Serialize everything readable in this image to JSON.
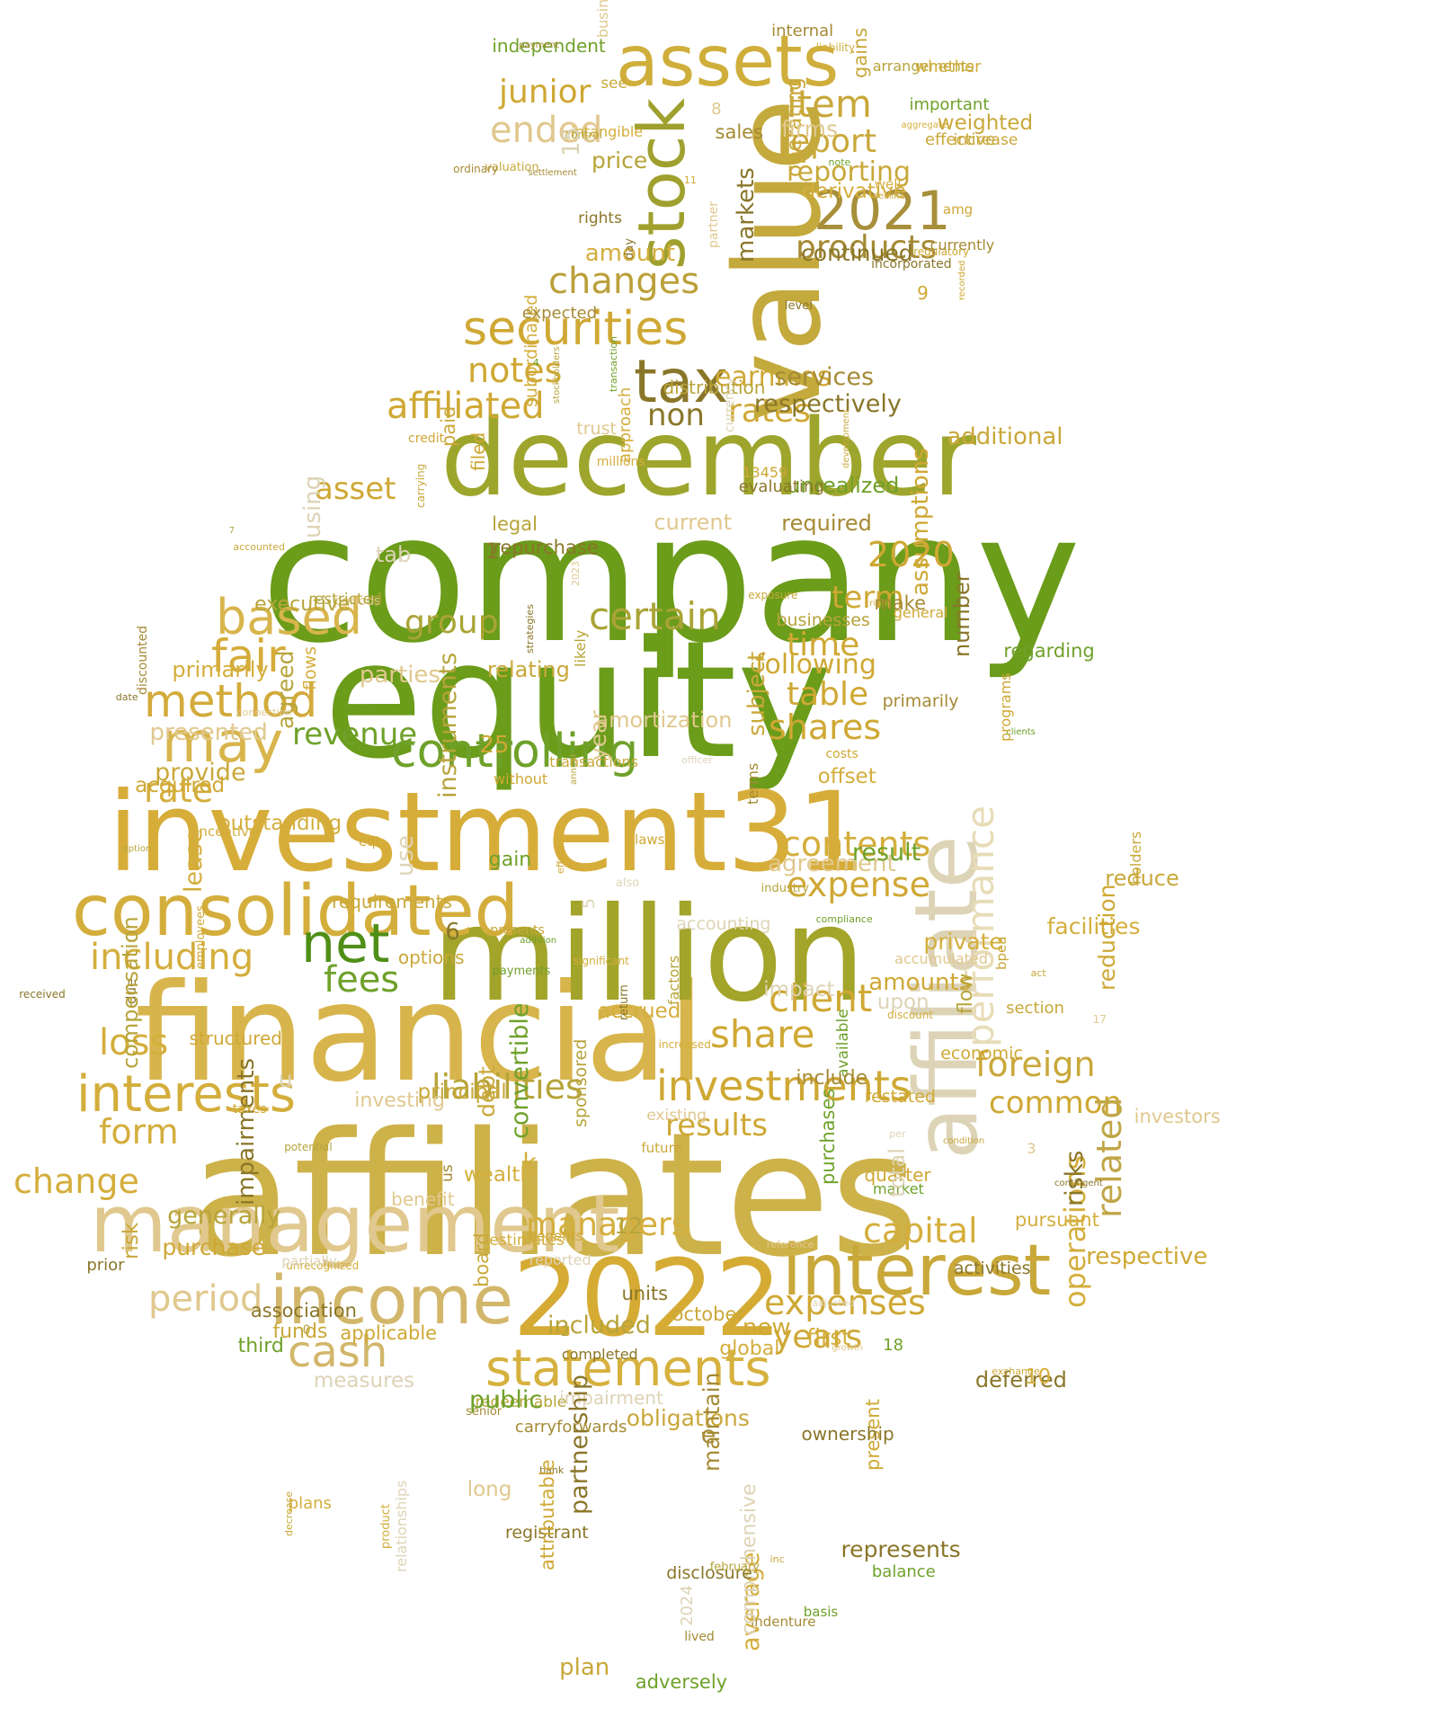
{
  "palette": {
    "dark_green": "#6b9c1a",
    "green": "#7fa622",
    "olive": "#9ea52c",
    "gold": "#d4ae3c",
    "light_gold": "#e0c275",
    "khaki": "#a88f3a",
    "beige": "#ddd3b6",
    "pale": "#e8dcb8",
    "brown": "#8a6e2c"
  },
  "words": [
    {
      "text": "company",
      "color": "#6b9c1a"
    },
    {
      "text": "equity",
      "color": "#6b9c1a"
    },
    {
      "text": "affiliates",
      "color": "#cdb24a"
    },
    {
      "text": "financial",
      "color": "#d8b54c"
    },
    {
      "text": "million",
      "color": "#a3a42a"
    },
    {
      "text": "investment31",
      "color": "#d7ad3a"
    },
    {
      "text": "december",
      "color": "#9ea52c"
    },
    {
      "text": "value",
      "color": "#c4a93c"
    },
    {
      "text": "affiliate",
      "color": "#ddd3b6"
    },
    {
      "text": "management",
      "color": "#e0c88e"
    },
    {
      "text": "2022",
      "color": "#d5ab34"
    },
    {
      "text": "consolidated",
      "color": "#d4ae3c"
    },
    {
      "text": "income",
      "color": "#d2b66a"
    },
    {
      "text": "interest",
      "color": "#c9a83a"
    },
    {
      "text": "assets",
      "color": "#cfae3b"
    },
    {
      "text": "stock",
      "color": "#a0a02f"
    },
    {
      "text": "statements",
      "color": "#d6b13e"
    },
    {
      "text": "net",
      "color": "#4f8f17"
    },
    {
      "text": "2021",
      "color": "#a88f3a"
    },
    {
      "text": "tax",
      "color": "#8a7629"
    },
    {
      "text": "securities",
      "color": "#cfa834"
    },
    {
      "text": "controlling",
      "color": "#6fa12a"
    },
    {
      "text": "interests",
      "color": "#d4ae3c"
    },
    {
      "text": "investments",
      "color": "#cfa834"
    },
    {
      "text": "may",
      "color": "#d8b54c"
    },
    {
      "text": "based",
      "color": "#d8b54c"
    },
    {
      "text": "method",
      "color": "#d3ab3c"
    },
    {
      "text": "fair",
      "color": "#d5ac3a"
    },
    {
      "text": "performance",
      "color": "#e8dcb8"
    },
    {
      "text": "products",
      "color": "#a58a34"
    },
    {
      "text": "changes",
      "color": "#bba03a"
    },
    {
      "text": "certain",
      "color": "#a9a436"
    },
    {
      "text": "shares",
      "color": "#cfa834"
    },
    {
      "text": "contents",
      "color": "#d4ae3c"
    },
    {
      "text": "expenses",
      "color": "#cfa834"
    },
    {
      "text": "cash",
      "color": "#d2b66a"
    },
    {
      "text": "liabilities",
      "color": "#b7a43a"
    },
    {
      "text": "managers",
      "color": "#d4ae3c"
    },
    {
      "text": "capital",
      "color": "#d4ae3c"
    },
    {
      "text": "operations",
      "color": "#d4ae3c"
    },
    {
      "text": "related",
      "color": "#c1a647"
    },
    {
      "text": "foreign",
      "color": "#c9a83a"
    },
    {
      "text": "common",
      "color": "#cfa834"
    },
    {
      "text": "results",
      "color": "#cfa834"
    },
    {
      "text": "share",
      "color": "#cfa834"
    },
    {
      "text": "client",
      "color": "#cfa834"
    },
    {
      "text": "expense",
      "color": "#cfa834"
    },
    {
      "text": "report",
      "color": "#c9a83a"
    },
    {
      "text": "reporting",
      "color": "#c9a83a"
    },
    {
      "text": "item",
      "color": "#c9a83a"
    },
    {
      "text": "junior",
      "color": "#cfa834"
    },
    {
      "text": "ended",
      "color": "#e0c88e"
    },
    {
      "text": "notes",
      "color": "#cfa834"
    },
    {
      "text": "affiliated",
      "color": "#cfa834"
    },
    {
      "text": "asset",
      "color": "#cfa834"
    },
    {
      "text": "rates",
      "color": "#cfa834"
    },
    {
      "text": "earnings",
      "color": "#cfa834"
    },
    {
      "text": "non",
      "color": "#8a7629"
    },
    {
      "text": "revenue",
      "color": "#6fa12a"
    },
    {
      "text": "fees",
      "color": "#6fa12a"
    },
    {
      "text": "including",
      "color": "#d4ae3c"
    },
    {
      "text": "rate",
      "color": "#d4ae3c"
    },
    {
      "text": "group",
      "color": "#a9a436"
    },
    {
      "text": "time",
      "color": "#cfa834"
    },
    {
      "text": "table",
      "color": "#cfa834"
    },
    {
      "text": "following",
      "color": "#cfa834"
    },
    {
      "text": "term",
      "color": "#cfa834"
    },
    {
      "text": "2020",
      "color": "#cfa834"
    },
    {
      "text": "form",
      "color": "#d4ae3c"
    },
    {
      "text": "change",
      "color": "#d4ae3c"
    },
    {
      "text": "loss",
      "color": "#d4ae3c"
    },
    {
      "text": "period",
      "color": "#e0c88e"
    },
    {
      "text": "years",
      "color": "#cfa834"
    },
    {
      "text": "interests2",
      "color": "#d4ae3c"
    }
  ],
  "small_words": [
    "significant",
    "price",
    "applicable",
    "potential",
    "provide",
    "future",
    "subordinated",
    "general",
    "plans",
    "board",
    "settlement",
    "indenture",
    "carryforwards",
    "unrecognized",
    "restated",
    "wealth",
    "officer",
    "section",
    "purchases",
    "recorded",
    "obligations",
    "intangible",
    "regulatory",
    "date",
    "reported",
    "13459",
    "7",
    "6",
    "agreement",
    "gain",
    "adversely",
    "existing",
    "year",
    "instruments",
    "level",
    "see",
    "partially",
    "senior",
    "act",
    "flows",
    "prior",
    "discounted",
    "purchase",
    "periods",
    "u",
    "valuation",
    "lived",
    "global",
    "generally",
    "options",
    "activities",
    "ordinary",
    "balance",
    "credit",
    "economic",
    "incentive",
    "distribution",
    "annual",
    "convertible",
    "amounts",
    "sales",
    "17",
    "5",
    "1",
    "3",
    "0",
    "bank",
    "funds",
    "acquired",
    "benefits",
    "addition",
    "adjusted",
    "parties",
    "relating",
    "factors",
    "strategies",
    "currency",
    "available",
    "present",
    "increased",
    "option",
    "basis",
    "liability",
    "upon",
    "required",
    "using",
    "tab",
    "executive",
    "current",
    "quarter",
    "transactions",
    "2023",
    "due",
    "e",
    "markets",
    "control",
    "third",
    "impact",
    "long",
    "average",
    "inc",
    "deferred",
    "operating",
    "condition",
    "registrant",
    "carrying",
    "filed",
    "debt",
    "increase",
    "subject",
    "amortization",
    "derivative",
    "comprehensive",
    "arrangements",
    "bpea",
    "investing",
    "continued",
    "payments",
    "compliance",
    "redeemable",
    "expected",
    "respective",
    "whether",
    "well",
    "laws",
    "trust",
    "paid",
    "outstanding",
    "plan",
    "firms",
    "transaction",
    "use",
    "presents",
    "industry",
    "compensation",
    "partner",
    "result",
    "number",
    "agreed",
    "right",
    "impairment",
    "10",
    "attributable",
    "october",
    "decrease",
    "business",
    "services",
    "facilities",
    "reduction",
    "decline",
    "market",
    "measures",
    "risk",
    "accounting",
    "independent",
    "effective",
    "additional",
    "unrealized",
    "partnership",
    "incorporated",
    "pursuant",
    "reference",
    "primarily",
    "primarily",
    "amount",
    "flow",
    "lease",
    "accounted",
    "also",
    "total",
    "respectively",
    "benefit",
    "effect",
    "association",
    "internal",
    "impairments",
    "included",
    "growth",
    "private",
    "new",
    "principal",
    "gains",
    "investors",
    "disclosure",
    "taxes",
    "amg",
    "clients",
    "discount",
    "product",
    "programs",
    "holders",
    "legal",
    "note",
    "employees",
    "contingent",
    "per",
    "aggregate",
    "received",
    "offset",
    "eqt",
    "costs",
    "include",
    "us",
    "payment",
    "exchange",
    "relationships",
    "repurchase",
    "millions",
    "estimates",
    "sponsored",
    "currently",
    "public",
    "likely",
    "businesses",
    "presented",
    "terms",
    "requirements",
    "restricted",
    "accrued",
    "rights",
    "approach",
    "2024",
    "first",
    "return",
    "exposure",
    "risks",
    "structured",
    "weighted",
    "february",
    "ownership",
    "without",
    "day",
    "evaluating",
    "stockholders",
    "assumptions",
    "completed",
    "reduce",
    "connection",
    "maintain",
    "represents",
    "units",
    "development",
    "regarding",
    "important",
    "make",
    "accumulated",
    "15",
    "9",
    "8",
    "4",
    "2",
    "18",
    "11",
    "12",
    "25",
    "k"
  ]
}
